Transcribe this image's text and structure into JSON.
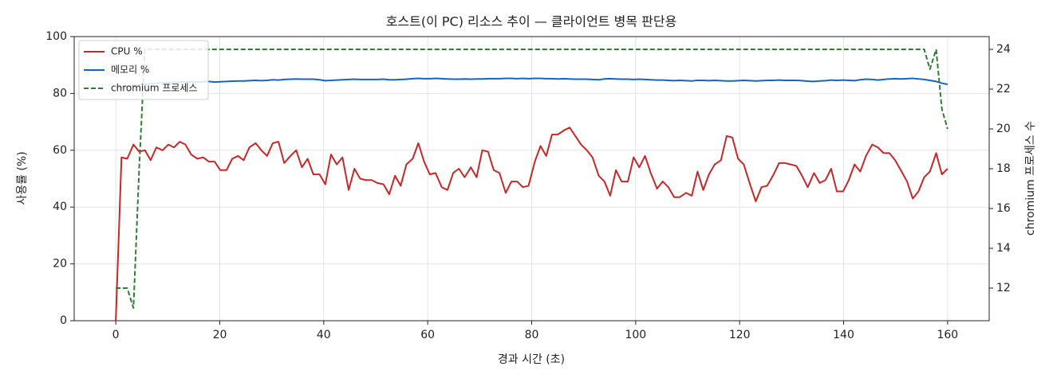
{
  "chart_data": {
    "type": "line",
    "title": "호스트(이 PC) 리소스 추이 — 클라이언트 병목 판단용",
    "xlabel": "경과 시간 (초)",
    "ylabel": "사용률 (%)",
    "y2label": "chromium 프로세스 수",
    "x": [
      0,
      1.1,
      2.2,
      3.4,
      4.5,
      5.6,
      6.7,
      7.8,
      9.0,
      10.1,
      11.2,
      12.3,
      13.4,
      14.5,
      15.7,
      16.8,
      17.9,
      19.0,
      20.1,
      21.3,
      22.4,
      23.5,
      24.6,
      25.7,
      26.9,
      28.0,
      29.1,
      30.2,
      31.3,
      32.4,
      33.6,
      34.7,
      35.8,
      36.9,
      38.0,
      39.2,
      40.3,
      41.4,
      42.5,
      43.6,
      44.8,
      45.9,
      47.0,
      48.1,
      49.2,
      50.3,
      51.5,
      52.6,
      53.7,
      54.8,
      55.9,
      57.1,
      58.2,
      59.3,
      60.4,
      61.5,
      62.7,
      63.8,
      64.9,
      66.0,
      67.1,
      68.3,
      69.4,
      70.5,
      71.6,
      72.7,
      73.8,
      75.0,
      76.1,
      77.2,
      78.3,
      79.4,
      80.6,
      81.7,
      82.8,
      83.9,
      85.0,
      86.2,
      87.3,
      88.4,
      89.5,
      90.6,
      91.7,
      92.9,
      94.0,
      95.1,
      96.2,
      97.3,
      98.5,
      99.6,
      100.7,
      101.8,
      102.9,
      104.1,
      105.2,
      106.3,
      107.4,
      108.5,
      109.7,
      110.8,
      111.9,
      113.0,
      114.1,
      115.2,
      116.4,
      117.5,
      118.6,
      119.7,
      120.8,
      122.0,
      123.1,
      124.2,
      125.3,
      126.4,
      127.6,
      128.7,
      129.8,
      130.9,
      132.0,
      133.1,
      134.3,
      135.4,
      136.5,
      137.6,
      138.7,
      139.9,
      141.0,
      142.1,
      143.2,
      144.3,
      145.5,
      146.6,
      147.7,
      148.8,
      149.9,
      151.0,
      152.2,
      153.3,
      154.4,
      155.5,
      156.6,
      157.8,
      158.9,
      160.0
    ],
    "series": [
      {
        "name": "CPU %",
        "color": "#c62828",
        "dash": false,
        "values": [
          0,
          57.5,
          57,
          62,
          59.5,
          60,
          56.5,
          61,
          60,
          62,
          61,
          63,
          62,
          58.5,
          57,
          57.5,
          56,
          56,
          53,
          53,
          57,
          58,
          56.5,
          61,
          62.5,
          60,
          58,
          62.5,
          63,
          55.5,
          58,
          60,
          54,
          57,
          51.5,
          51.5,
          48,
          58.5,
          55,
          57.5,
          46,
          53.5,
          50,
          49.5,
          49.5,
          48.5,
          48,
          44.5,
          51,
          47.5,
          55,
          57,
          62.5,
          56,
          51.5,
          52,
          47,
          46,
          52,
          53.5,
          50.5,
          54,
          50.5,
          60,
          59.5,
          53,
          52,
          45,
          49,
          49,
          47,
          47.5,
          56,
          61.5,
          58,
          65.5,
          65.5,
          67,
          68,
          65,
          62,
          60,
          57.5,
          51,
          49,
          44,
          53,
          49,
          49,
          57.5,
          54,
          58,
          52,
          46.5,
          49,
          47,
          43.5,
          43.5,
          45,
          44,
          52.5,
          46,
          51.5,
          55,
          56.5,
          65,
          64.5,
          57,
          55,
          48,
          42,
          47,
          47.5,
          51,
          55.5,
          55.5,
          55,
          54.5,
          51,
          47,
          52,
          48.5,
          49.5,
          53.5,
          45.5,
          45.5,
          49.5,
          55,
          52.5,
          58,
          62,
          61,
          59,
          59,
          56.5,
          53,
          49,
          43,
          45.5,
          50.5,
          52.5,
          59,
          51.5,
          53.5
        ]
      },
      {
        "name": "메모리 %",
        "color": "#1565c0",
        "dash": false,
        "values": [
          82,
          82.2,
          82.5,
          82.8,
          83,
          83.2,
          83.4,
          83.6,
          83.7,
          83.8,
          83.9,
          84,
          84,
          84.1,
          84,
          84.1,
          84.2,
          84,
          84.1,
          84.2,
          84.3,
          84.4,
          84.4,
          84.5,
          84.6,
          84.5,
          84.6,
          84.8,
          84.7,
          84.9,
          85,
          85.1,
          85,
          85,
          85,
          84.8,
          84.5,
          84.6,
          84.7,
          84.8,
          84.9,
          85,
          84.9,
          84.9,
          84.9,
          84.9,
          85,
          84.8,
          84.8,
          84.9,
          85,
          85.2,
          85.3,
          85.2,
          85.2,
          85.3,
          85.2,
          85.1,
          85,
          85,
          85.1,
          85,
          85.1,
          85.1,
          85.2,
          85.2,
          85.2,
          85.3,
          85.3,
          85.2,
          85.3,
          85.2,
          85.3,
          85.3,
          85.2,
          85.2,
          85.1,
          85.2,
          85.1,
          85,
          85,
          85,
          84.9,
          84.8,
          85.1,
          85.2,
          85.1,
          85,
          85,
          84.9,
          85,
          84.9,
          84.8,
          84.7,
          84.7,
          84.6,
          84.5,
          84.6,
          84.5,
          84.4,
          84.6,
          84.6,
          84.5,
          84.6,
          84.5,
          84.4,
          84.4,
          84.5,
          84.6,
          84.5,
          84.4,
          84.5,
          84.6,
          84.6,
          84.7,
          84.6,
          84.6,
          84.6,
          84.5,
          84.3,
          84.2,
          84.4,
          84.5,
          84.7,
          84.6,
          84.7,
          84.6,
          84.5,
          84.8,
          85,
          84.9,
          84.7,
          84.9,
          85.1,
          85.2,
          85.1,
          85.2,
          85.3,
          85.1,
          84.9,
          84.6,
          84.2,
          83.6,
          83.2
        ]
      },
      {
        "name": "chromium 프로세스",
        "color": "#2e7d32",
        "dash": true,
        "axis": "y2",
        "values": [
          12,
          12,
          12,
          11,
          18,
          24,
          24,
          24,
          24,
          24,
          24,
          24,
          24,
          24,
          24,
          24,
          24,
          24,
          24,
          24,
          24,
          24,
          24,
          24,
          24,
          24,
          24,
          24,
          24,
          24,
          24,
          24,
          24,
          24,
          24,
          24,
          24,
          24,
          24,
          24,
          24,
          24,
          24,
          24,
          24,
          24,
          24,
          24,
          24,
          24,
          24,
          24,
          24,
          24,
          24,
          24,
          24,
          24,
          24,
          24,
          24,
          24,
          24,
          24,
          24,
          24,
          24,
          24,
          24,
          24,
          24,
          24,
          24,
          24,
          24,
          24,
          24,
          24,
          24,
          24,
          24,
          24,
          24,
          24,
          24,
          24,
          24,
          24,
          24,
          24,
          24,
          24,
          24,
          24,
          24,
          24,
          24,
          24,
          24,
          24,
          24,
          24,
          24,
          24,
          24,
          24,
          24,
          24,
          24,
          24,
          24,
          24,
          24,
          24,
          24,
          24,
          24,
          24,
          24,
          24,
          24,
          24,
          24,
          24,
          24,
          24,
          24,
          24,
          24,
          24,
          24,
          24,
          24,
          24,
          24,
          24,
          24,
          24,
          24,
          24,
          23,
          24,
          21,
          20
        ]
      }
    ],
    "xlim": [
      -8,
      168
    ],
    "xticks": [
      0,
      20,
      40,
      60,
      80,
      100,
      120,
      140,
      160
    ],
    "ylim": [
      0,
      100
    ],
    "yticks": [
      0,
      20,
      40,
      60,
      80,
      100
    ],
    "y2lim": [
      10.36,
      24.64
    ],
    "y2ticks": [
      12,
      14,
      16,
      18,
      20,
      22,
      24
    ],
    "grid": true,
    "legend": "upper left"
  }
}
